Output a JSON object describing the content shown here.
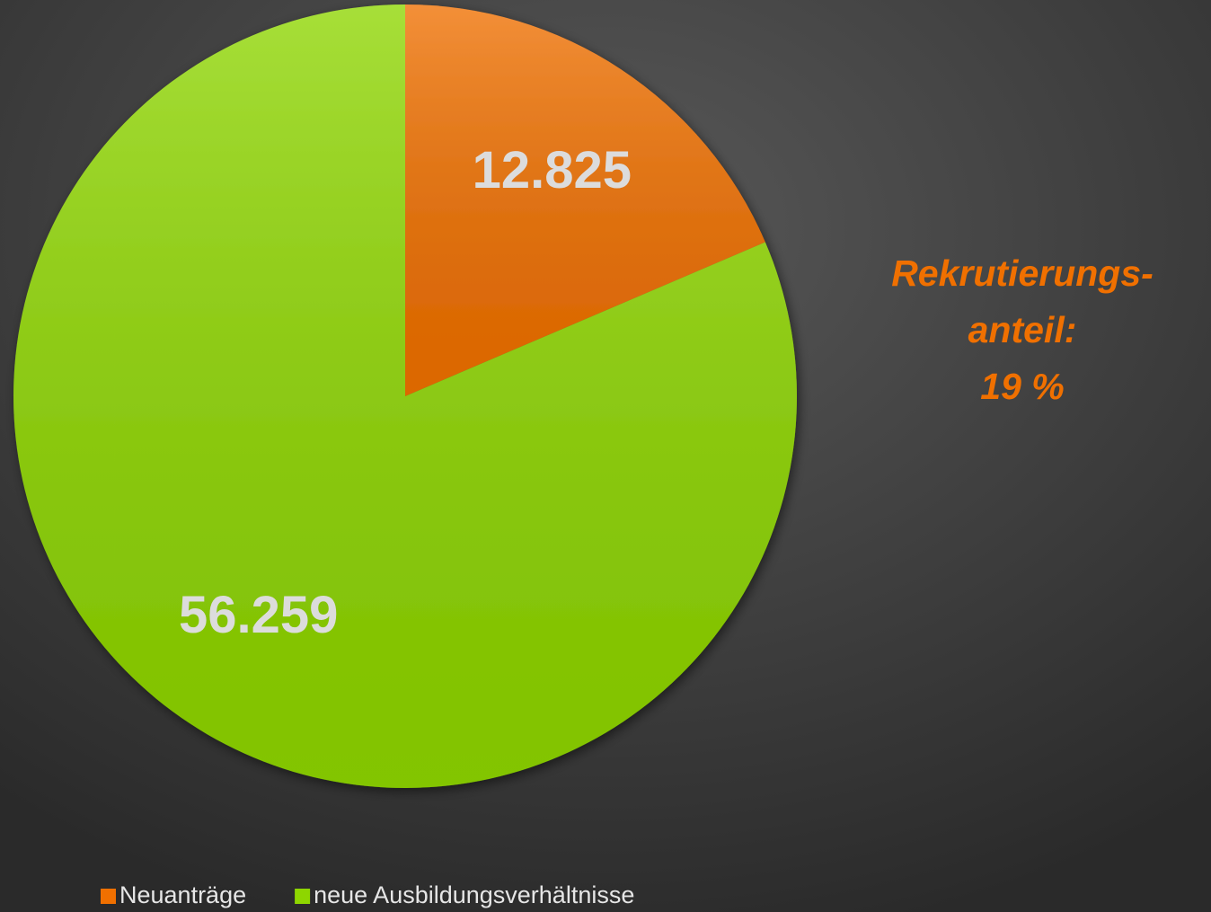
{
  "chart_data": {
    "type": "pie",
    "categories": [
      "Neuanträge",
      "neue Ausbildungsverhältnisse"
    ],
    "values": [
      12825,
      56259
    ],
    "value_labels": [
      "12.825",
      "56.259"
    ],
    "colors": [
      "#f07000",
      "#8ed600"
    ],
    "annotation": [
      "Rekrutierungs-",
      "anteil:",
      "19 %"
    ],
    "legend": "bottom"
  }
}
